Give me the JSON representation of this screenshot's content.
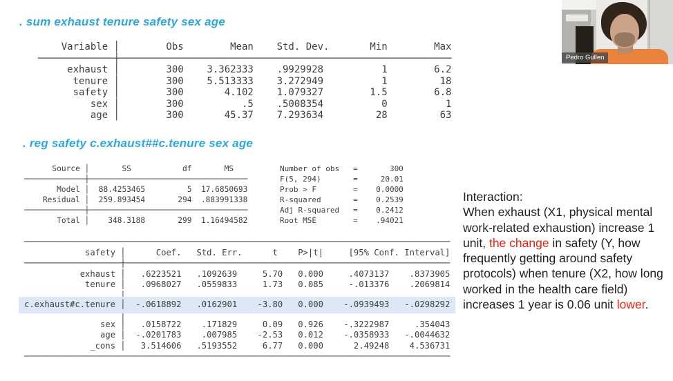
{
  "commands": {
    "sum": ". sum exhaust tenure safety sex age",
    "reg": ". reg safety  c.exhaust##c.tenure sex age"
  },
  "summary_table": {
    "lines": [
      "    Variable │        Obs        Mean    Std. Dev.       Min        Max",
      "─────────────┼─────────────────────────────────────────────────────────",
      "     exhaust │        300    3.362333    .9929928          1        6.2",
      "      tenure │        300    5.513333    3.272949          1         18",
      "      safety │        300       4.102    1.079327        1.5        6.8",
      "         sex │        300          .5    .5008354          0          1",
      "         age │        300       45.37    7.293634         28         63"
    ]
  },
  "regression": {
    "anova": {
      "lines": [
        "      Source │       SS           df       MS",
        "─────────────┼──────────────────────────────────",
        "       Model │  88.4253465         5  17.6850693",
        "    Residual │  259.893454       294  .883991338",
        "─────────────┼──────────────────────────────────",
        "       Total │    348.3188       299  1.16494582"
      ]
    },
    "stats": {
      "lines": [
        "Number of obs   =       300",
        "F(5, 294)       =     20.01",
        "Prob > F        =    0.0000",
        "R-squared       =    0.2539",
        "Adj R-squared   =    0.2412",
        "Root MSE        =    .94021"
      ]
    },
    "coef": {
      "highlight_line": 6,
      "lines": [
        "────────────────────────────────────────────────────────────────────────────────────",
        "            safety │      Coef.   Std. Err.      t    P>|t|     [95% Conf. Interval]",
        "───────────────────┼────────────────────────────────────────────────────────────────",
        "           exhaust │   .6223521   .1092639     5.70   0.000     .4073137    .8373905",
        "            tenure │   .0968027   .0559833     1.73   0.085     -.013376    .2069814",
        "                   │",
        "c.exhaust#c.tenure │  -.0618892   .0162901    -3.80   0.000    -.0939493   -.0298292",
        "                   │",
        "               sex │   .0158722    .171829     0.09   0.926    -.3222987     .354043",
        "               age │  -.0201783    .007985    -2.53   0.012    -.0358933   -.0044632",
        "             _cons │   3.514606   .5193552     6.77   0.000      2.49248    4.536731",
        "────────────────────────────────────────────────────────────────────────────────────"
      ]
    }
  },
  "annotation": {
    "runs": [
      {
        "text": "Interaction:\nWhen exhaust (X1, physical mental work-related exhaustion) increase 1 unit, "
      },
      {
        "text": "the change",
        "red": true
      },
      {
        "text": " in safety (Y, how frequently getting around safety protocols) when tenure (X2, how long worked in the health care field) increases 1 year is 0.06 unit "
      },
      {
        "text": "lower",
        "red": true
      },
      {
        "text": "."
      }
    ]
  },
  "webcam": {
    "name_label": "Pedro Gullen"
  },
  "colors": {
    "command_blue": "#2ea7da",
    "highlight_blue": "#dce8f6",
    "emphasis_red": "#e42313",
    "stata_text": "#3f3f3f"
  }
}
